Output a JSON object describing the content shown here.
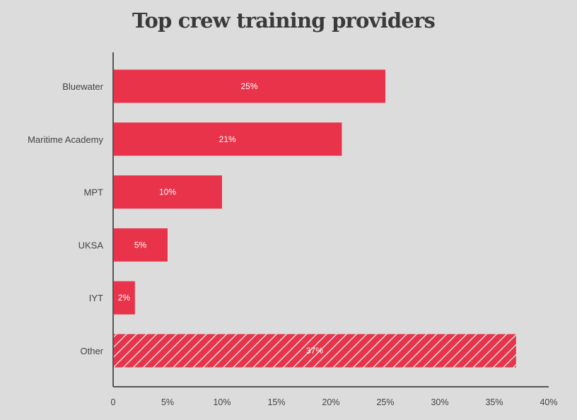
{
  "chart_data": {
    "type": "bar",
    "orientation": "horizontal",
    "title": "Top crew training providers",
    "categories": [
      "Bluewater",
      "Maritime Academy",
      "MPT",
      "UKSA",
      "IYT",
      "Other"
    ],
    "values": [
      25,
      21,
      10,
      5,
      2,
      37
    ],
    "data_labels": [
      "25%",
      "21%",
      "10%",
      "5%",
      "2%",
      "37%"
    ],
    "hatched": [
      false,
      false,
      false,
      false,
      false,
      true
    ],
    "xlim": [
      0,
      40
    ],
    "xticks": [
      0,
      5,
      10,
      15,
      20,
      25,
      30,
      35,
      40
    ],
    "xtick_labels": [
      "0",
      "5%",
      "10%",
      "15%",
      "20%",
      "25%",
      "30%",
      "35%",
      "40%"
    ],
    "xlabel": "",
    "ylabel": "",
    "grid": false,
    "legend": "none",
    "colors": {
      "bar": "#e8334a",
      "axis": "#555555",
      "background": "#dcdcdc",
      "text": "#444444",
      "title": "#3a3a3a"
    }
  }
}
